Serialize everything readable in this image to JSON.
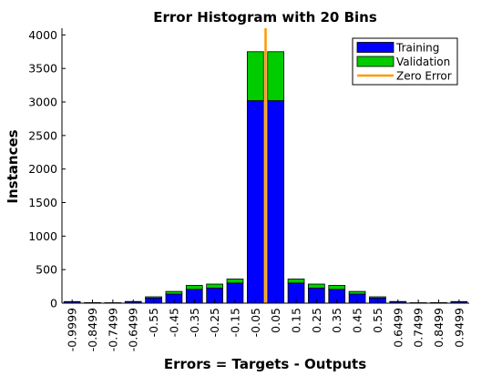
{
  "chart_data": {
    "type": "bar",
    "stacked": true,
    "title": "Error Histogram with 20 Bins",
    "xlabel": "Errors = Targets - Outputs",
    "ylabel": "Instances",
    "categories": [
      "-0.9999",
      "-0.8499",
      "-0.7499",
      "-0.6499",
      "-0.55",
      "-0.45",
      "-0.35",
      "-0.25",
      "-0.15",
      "-0.05",
      "0.05",
      "0.15",
      "0.25",
      "0.35",
      "0.45",
      "0.55",
      "0.6499",
      "0.7499",
      "0.8499",
      "0.9499"
    ],
    "series": [
      {
        "name": "Training",
        "color": "#0000ff",
        "values": [
          20,
          6,
          5,
          20,
          75,
          135,
          205,
          225,
          300,
          3020,
          3020,
          300,
          225,
          205,
          135,
          75,
          20,
          5,
          6,
          20
        ]
      },
      {
        "name": "Validation",
        "color": "#00cc00",
        "values": [
          4,
          2,
          1,
          5,
          20,
          40,
          60,
          60,
          60,
          730,
          730,
          60,
          60,
          60,
          40,
          20,
          5,
          1,
          2,
          4
        ]
      }
    ],
    "reference_line": {
      "name": "Zero Error",
      "x": 0,
      "color": "#ff9900"
    },
    "yticks": [
      0,
      500,
      1000,
      1500,
      2000,
      2500,
      3000,
      3500,
      4000
    ],
    "ylim": [
      0,
      4100
    ],
    "legend_position": "top-right",
    "grid": false
  }
}
